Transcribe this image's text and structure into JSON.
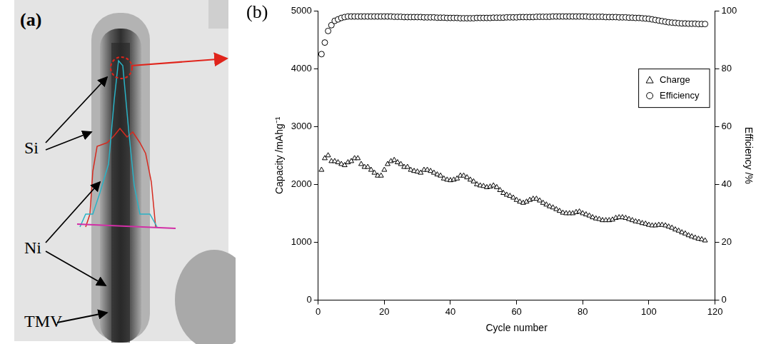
{
  "image_panel": {
    "label": "(a)",
    "annotations": [
      "Si",
      "Ni",
      "TMV"
    ]
  },
  "chart_data": {
    "type": "scatter",
    "panel": "(b)",
    "x_label": "Cycle number",
    "y_label": "Capacity /mAhg⁻¹",
    "y2_label": "Efficiency /%",
    "xlim": [
      0,
      120
    ],
    "xticks": [
      0,
      20,
      40,
      60,
      80,
      100,
      120
    ],
    "ylim": [
      0,
      5000
    ],
    "yticks": [
      0,
      1000,
      2000,
      3000,
      4000,
      5000
    ],
    "y2lim": [
      0,
      100
    ],
    "y2ticks": [
      0,
      20,
      40,
      60,
      80,
      100
    ],
    "grid": false,
    "legend": "upper right",
    "x": [
      1,
      2,
      3,
      4,
      5,
      6,
      7,
      8,
      9,
      10,
      11,
      12,
      13,
      14,
      15,
      16,
      17,
      18,
      19,
      20,
      21,
      22,
      23,
      24,
      25,
      26,
      27,
      28,
      29,
      30,
      31,
      32,
      33,
      34,
      35,
      36,
      37,
      38,
      39,
      40,
      41,
      42,
      43,
      44,
      45,
      46,
      47,
      48,
      49,
      50,
      51,
      52,
      53,
      54,
      55,
      56,
      57,
      58,
      59,
      60,
      61,
      62,
      63,
      64,
      65,
      66,
      67,
      68,
      69,
      70,
      71,
      72,
      73,
      74,
      75,
      76,
      77,
      78,
      79,
      80,
      81,
      82,
      83,
      84,
      85,
      86,
      87,
      88,
      89,
      90,
      91,
      92,
      93,
      94,
      95,
      96,
      97,
      98,
      99,
      100,
      101,
      102,
      103,
      104,
      105,
      106,
      107,
      108,
      109,
      110,
      111,
      112,
      113,
      114,
      115,
      116,
      117
    ],
    "series": [
      {
        "name": "Charge",
        "color": "#000000",
        "marker": "triangle",
        "values": [
          2250,
          2450,
          2500,
          2400,
          2400,
          2380,
          2350,
          2330,
          2380,
          2400,
          2450,
          2450,
          2350,
          2300,
          2300,
          2250,
          2200,
          2150,
          2150,
          2250,
          2350,
          2400,
          2420,
          2380,
          2350,
          2300,
          2300,
          2250,
          2230,
          2220,
          2200,
          2250,
          2250,
          2230,
          2200,
          2170,
          2150,
          2100,
          2080,
          2070,
          2080,
          2100,
          2150,
          2150,
          2120,
          2080,
          2050,
          2000,
          1980,
          1970,
          1950,
          1960,
          1980,
          1950,
          1900,
          1850,
          1820,
          1800,
          1770,
          1730,
          1700,
          1680,
          1700,
          1730,
          1750,
          1750,
          1720,
          1680,
          1650,
          1620,
          1600,
          1570,
          1540,
          1510,
          1500,
          1500,
          1500,
          1520,
          1530,
          1500,
          1480,
          1460,
          1430,
          1410,
          1400,
          1380,
          1380,
          1380,
          1390,
          1420,
          1430,
          1430,
          1420,
          1400,
          1380,
          1360,
          1350,
          1330,
          1320,
          1300,
          1290,
          1290,
          1300,
          1300,
          1290,
          1270,
          1250,
          1220,
          1200,
          1170,
          1150,
          1120,
          1100,
          1080,
          1060,
          1050,
          1030
        ]
      },
      {
        "name": "Efficiency",
        "color": "#000000",
        "marker": "circle",
        "axis": "y2",
        "values": [
          85,
          89,
          93,
          95,
          96.5,
          97,
          97.5,
          97.8,
          98,
          98,
          98,
          98,
          98,
          98,
          98,
          98,
          98,
          98,
          98,
          98,
          98,
          98,
          97.9,
          97.9,
          97.9,
          97.8,
          97.8,
          97.8,
          97.8,
          97.8,
          97.8,
          97.7,
          97.7,
          97.7,
          97.7,
          97.6,
          97.6,
          97.6,
          97.5,
          97.5,
          97.5,
          97.5,
          97.4,
          97.4,
          97.4,
          97.4,
          97.4,
          97.5,
          97.5,
          97.5,
          97.5,
          97.5,
          97.6,
          97.6,
          97.6,
          97.6,
          97.7,
          97.7,
          97.7,
          97.7,
          97.8,
          97.8,
          97.8,
          97.8,
          97.8,
          97.9,
          97.9,
          97.9,
          97.9,
          97.9,
          98,
          98,
          98,
          98,
          98,
          98,
          98,
          98,
          98,
          98,
          98,
          97.9,
          97.9,
          97.9,
          97.9,
          97.9,
          97.8,
          97.8,
          97.8,
          97.8,
          97.7,
          97.7,
          97.7,
          97.6,
          97.6,
          97.5,
          97.5,
          97.4,
          97.3,
          97.2,
          97,
          96.8,
          96.6,
          96.4,
          96.2,
          96,
          95.9,
          95.8,
          95.7,
          95.6,
          95.6,
          95.5,
          95.5,
          95.5,
          95.4,
          95.4,
          95.4
        ]
      }
    ]
  }
}
